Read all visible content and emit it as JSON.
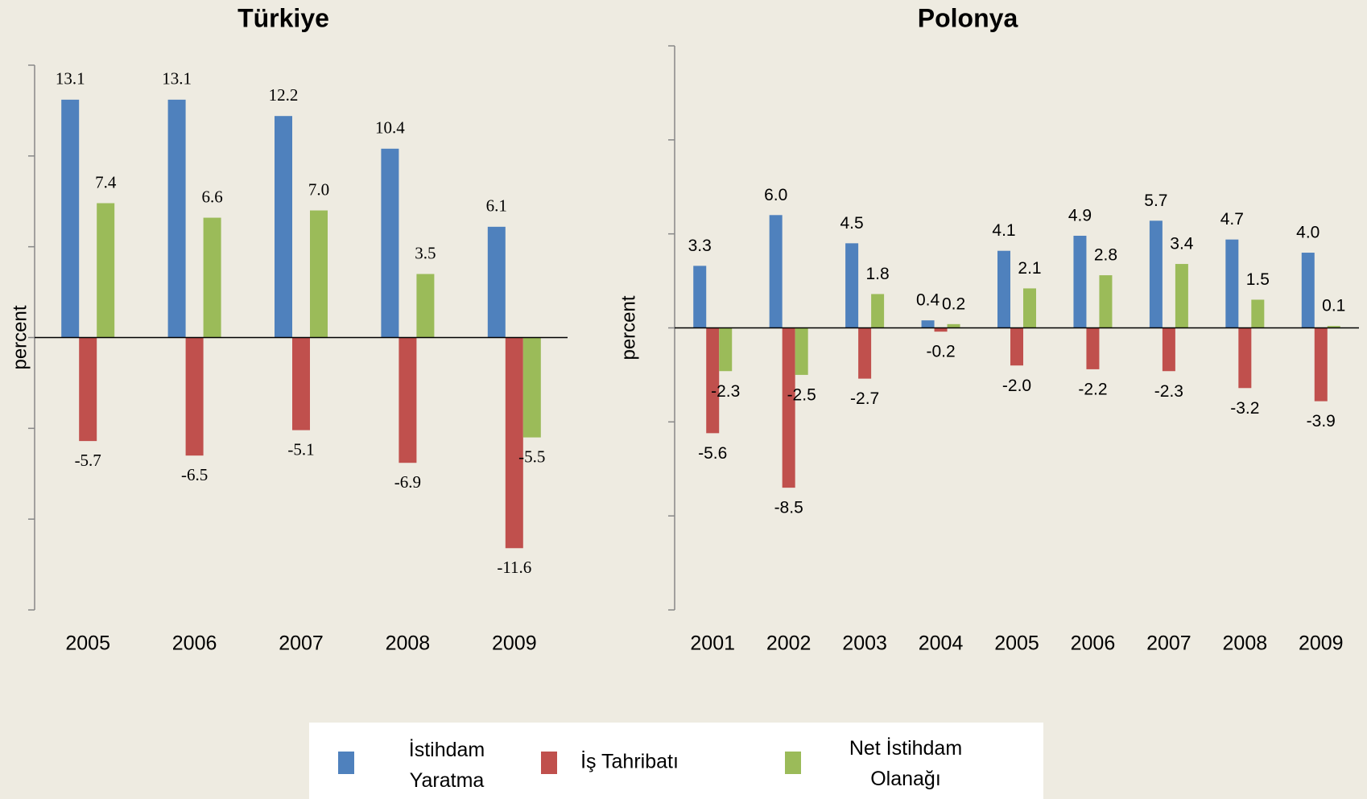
{
  "chart_data": [
    {
      "type": "bar",
      "title": "Türkiye",
      "y_label": "percent",
      "categories": [
        "2005",
        "2006",
        "2007",
        "2008",
        "2009"
      ],
      "ylim": [
        -15,
        15
      ],
      "yticks": [
        -15,
        -10,
        -5,
        0,
        5,
        10,
        15
      ],
      "series": [
        {
          "name": "İstihdam Yaratma",
          "color": "#4f81bd",
          "values": [
            13.1,
            13.1,
            12.2,
            10.4,
            6.1
          ],
          "value_labels": [
            "13.1",
            "13.1",
            "12.2",
            "10.4",
            "6.1"
          ]
        },
        {
          "name": "İş Tahribatı",
          "color": "#c0504d",
          "values": [
            -5.7,
            -6.5,
            -5.1,
            -6.9,
            -11.6
          ],
          "value_labels": [
            "-5.7",
            "-6.5",
            "-5.1",
            "-6.9",
            "-11.6"
          ]
        },
        {
          "name": "Net İstihdam Olanağı",
          "color": "#9bbb59",
          "values": [
            7.4,
            6.6,
            7.0,
            3.5,
            -5.5
          ],
          "value_labels": [
            "7.4",
            "6.6",
            "7.0",
            "3.5",
            "-5.5"
          ]
        }
      ]
    },
    {
      "type": "bar",
      "title": "Polonya",
      "y_label": "percent",
      "categories": [
        "2001",
        "2002",
        "2003",
        "2004",
        "2005",
        "2006",
        "2007",
        "2008",
        "2009"
      ],
      "ylim": [
        -15,
        15
      ],
      "yticks": [
        -15,
        -10,
        -5,
        0,
        5,
        10,
        15
      ],
      "series": [
        {
          "name": "İstihdam Yaratma",
          "color": "#4f81bd",
          "values": [
            3.3,
            6.0,
            4.5,
            0.4,
            4.1,
            4.9,
            5.7,
            4.7,
            4.0
          ],
          "value_labels": [
            "3.3",
            "6.0",
            "4.5",
            "0.4",
            "4.1",
            "4.9",
            "5.7",
            "4.7",
            "4.0"
          ]
        },
        {
          "name": "İş Tahribatı",
          "color": "#c0504d",
          "values": [
            -5.6,
            -8.5,
            -2.7,
            -0.2,
            -2.0,
            -2.2,
            -2.3,
            -3.2,
            -3.9
          ],
          "value_labels": [
            "-5.6",
            "-8.5",
            "-2.7",
            "-0.2",
            "-2.0",
            "-2.2",
            "-2.3",
            "-3.2",
            "-3.9"
          ]
        },
        {
          "name": "Net İstihdam Olanağı",
          "color": "#9bbb59",
          "values": [
            -2.3,
            -2.5,
            1.8,
            0.2,
            2.1,
            2.8,
            3.4,
            1.5,
            0.1
          ],
          "value_labels": [
            "-2.3",
            "-2.5",
            "1.8",
            "0.2",
            "2.1",
            "2.8",
            "3.4",
            "1.5",
            "0.1"
          ]
        }
      ]
    }
  ]
}
